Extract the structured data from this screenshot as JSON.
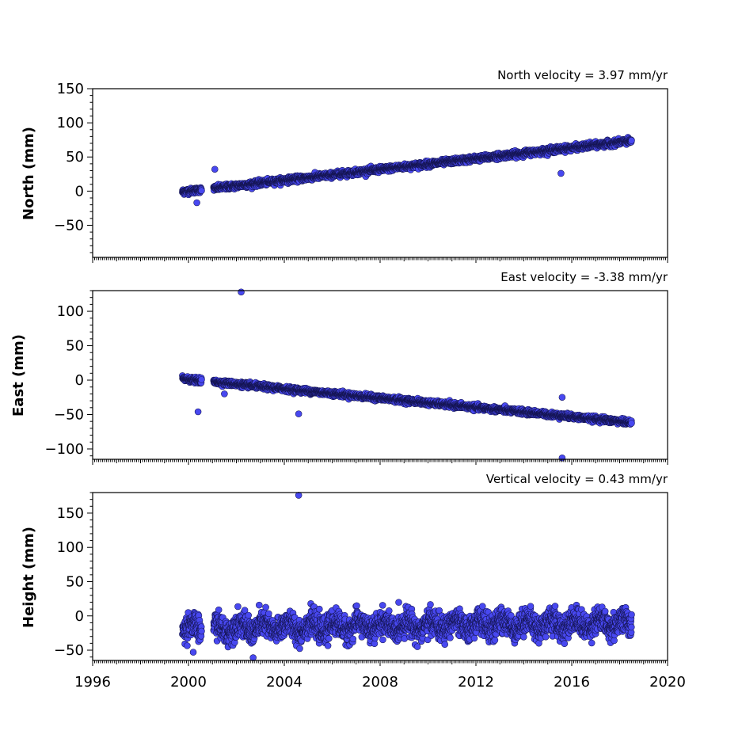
{
  "chart_data": [
    {
      "type": "scatter",
      "panel": "north",
      "ylabel": "North (mm)",
      "annotation": "North velocity = 3.97 mm/yr",
      "velocity_mm_per_yr": 3.97,
      "intercept_at_2000": 0,
      "xlim": [
        1996,
        2020
      ],
      "ylim": [
        -97,
        150
      ],
      "yticks": [
        150,
        100,
        50,
        0,
        -50
      ],
      "ytick_labels": [
        "150",
        "100",
        "50",
        "0",
        "−50"
      ],
      "noise_mm": 2.0,
      "seasonal_mm": 0,
      "point_color": "#4848f0",
      "edge_color": "#141450",
      "outliers": [
        [
          2001.1,
          32
        ],
        [
          2000.35,
          -17
        ],
        [
          2015.55,
          26
        ]
      ]
    },
    {
      "type": "scatter",
      "panel": "east",
      "ylabel": "East (mm)",
      "annotation": "East velocity = -3.38 mm/yr",
      "velocity_mm_per_yr": -3.38,
      "intercept_at_2000": 1,
      "xlim": [
        1996,
        2020
      ],
      "ylim": [
        -115,
        130
      ],
      "yticks": [
        100,
        50,
        0,
        -50,
        -100
      ],
      "ytick_labels": [
        "100",
        "50",
        "0",
        "−50",
        "−100"
      ],
      "noise_mm": 1.8,
      "seasonal_mm": 0,
      "point_color": "#4848f0",
      "edge_color": "#141450",
      "outliers": [
        [
          2002.2,
          128
        ],
        [
          2000.4,
          -46
        ],
        [
          2004.6,
          -49
        ],
        [
          2015.6,
          -25
        ],
        [
          2015.6,
          -113
        ],
        [
          2001.5,
          -20
        ]
      ]
    },
    {
      "type": "scatter",
      "panel": "height",
      "ylabel": "Height (mm)",
      "annotation": "Vertical velocity = 0.43 mm/yr",
      "velocity_mm_per_yr": 0.43,
      "intercept_at_2000": -18,
      "xlim": [
        1996,
        2020
      ],
      "ylim": [
        -65,
        180
      ],
      "yticks": [
        150,
        100,
        50,
        0,
        -50
      ],
      "ytick_labels": [
        "150",
        "100",
        "50",
        "0",
        "−50"
      ],
      "noise_mm": 9,
      "seasonal_mm": 7,
      "point_color": "#4848f0",
      "edge_color": "#141450",
      "outliers": [
        [
          2004.6,
          176
        ],
        [
          2002.7,
          -61
        ],
        [
          2000.2,
          -53
        ]
      ]
    }
  ],
  "xaxis": {
    "ticks": [
      1996,
      2000,
      2004,
      2008,
      2012,
      2016,
      2020
    ],
    "tick_labels": [
      "1996",
      "2000",
      "2004",
      "2008",
      "2012",
      "2016",
      "2020"
    ]
  },
  "data_coverage": [
    [
      1999.75,
      2000.55
    ],
    [
      2001.05,
      2018.5
    ]
  ]
}
